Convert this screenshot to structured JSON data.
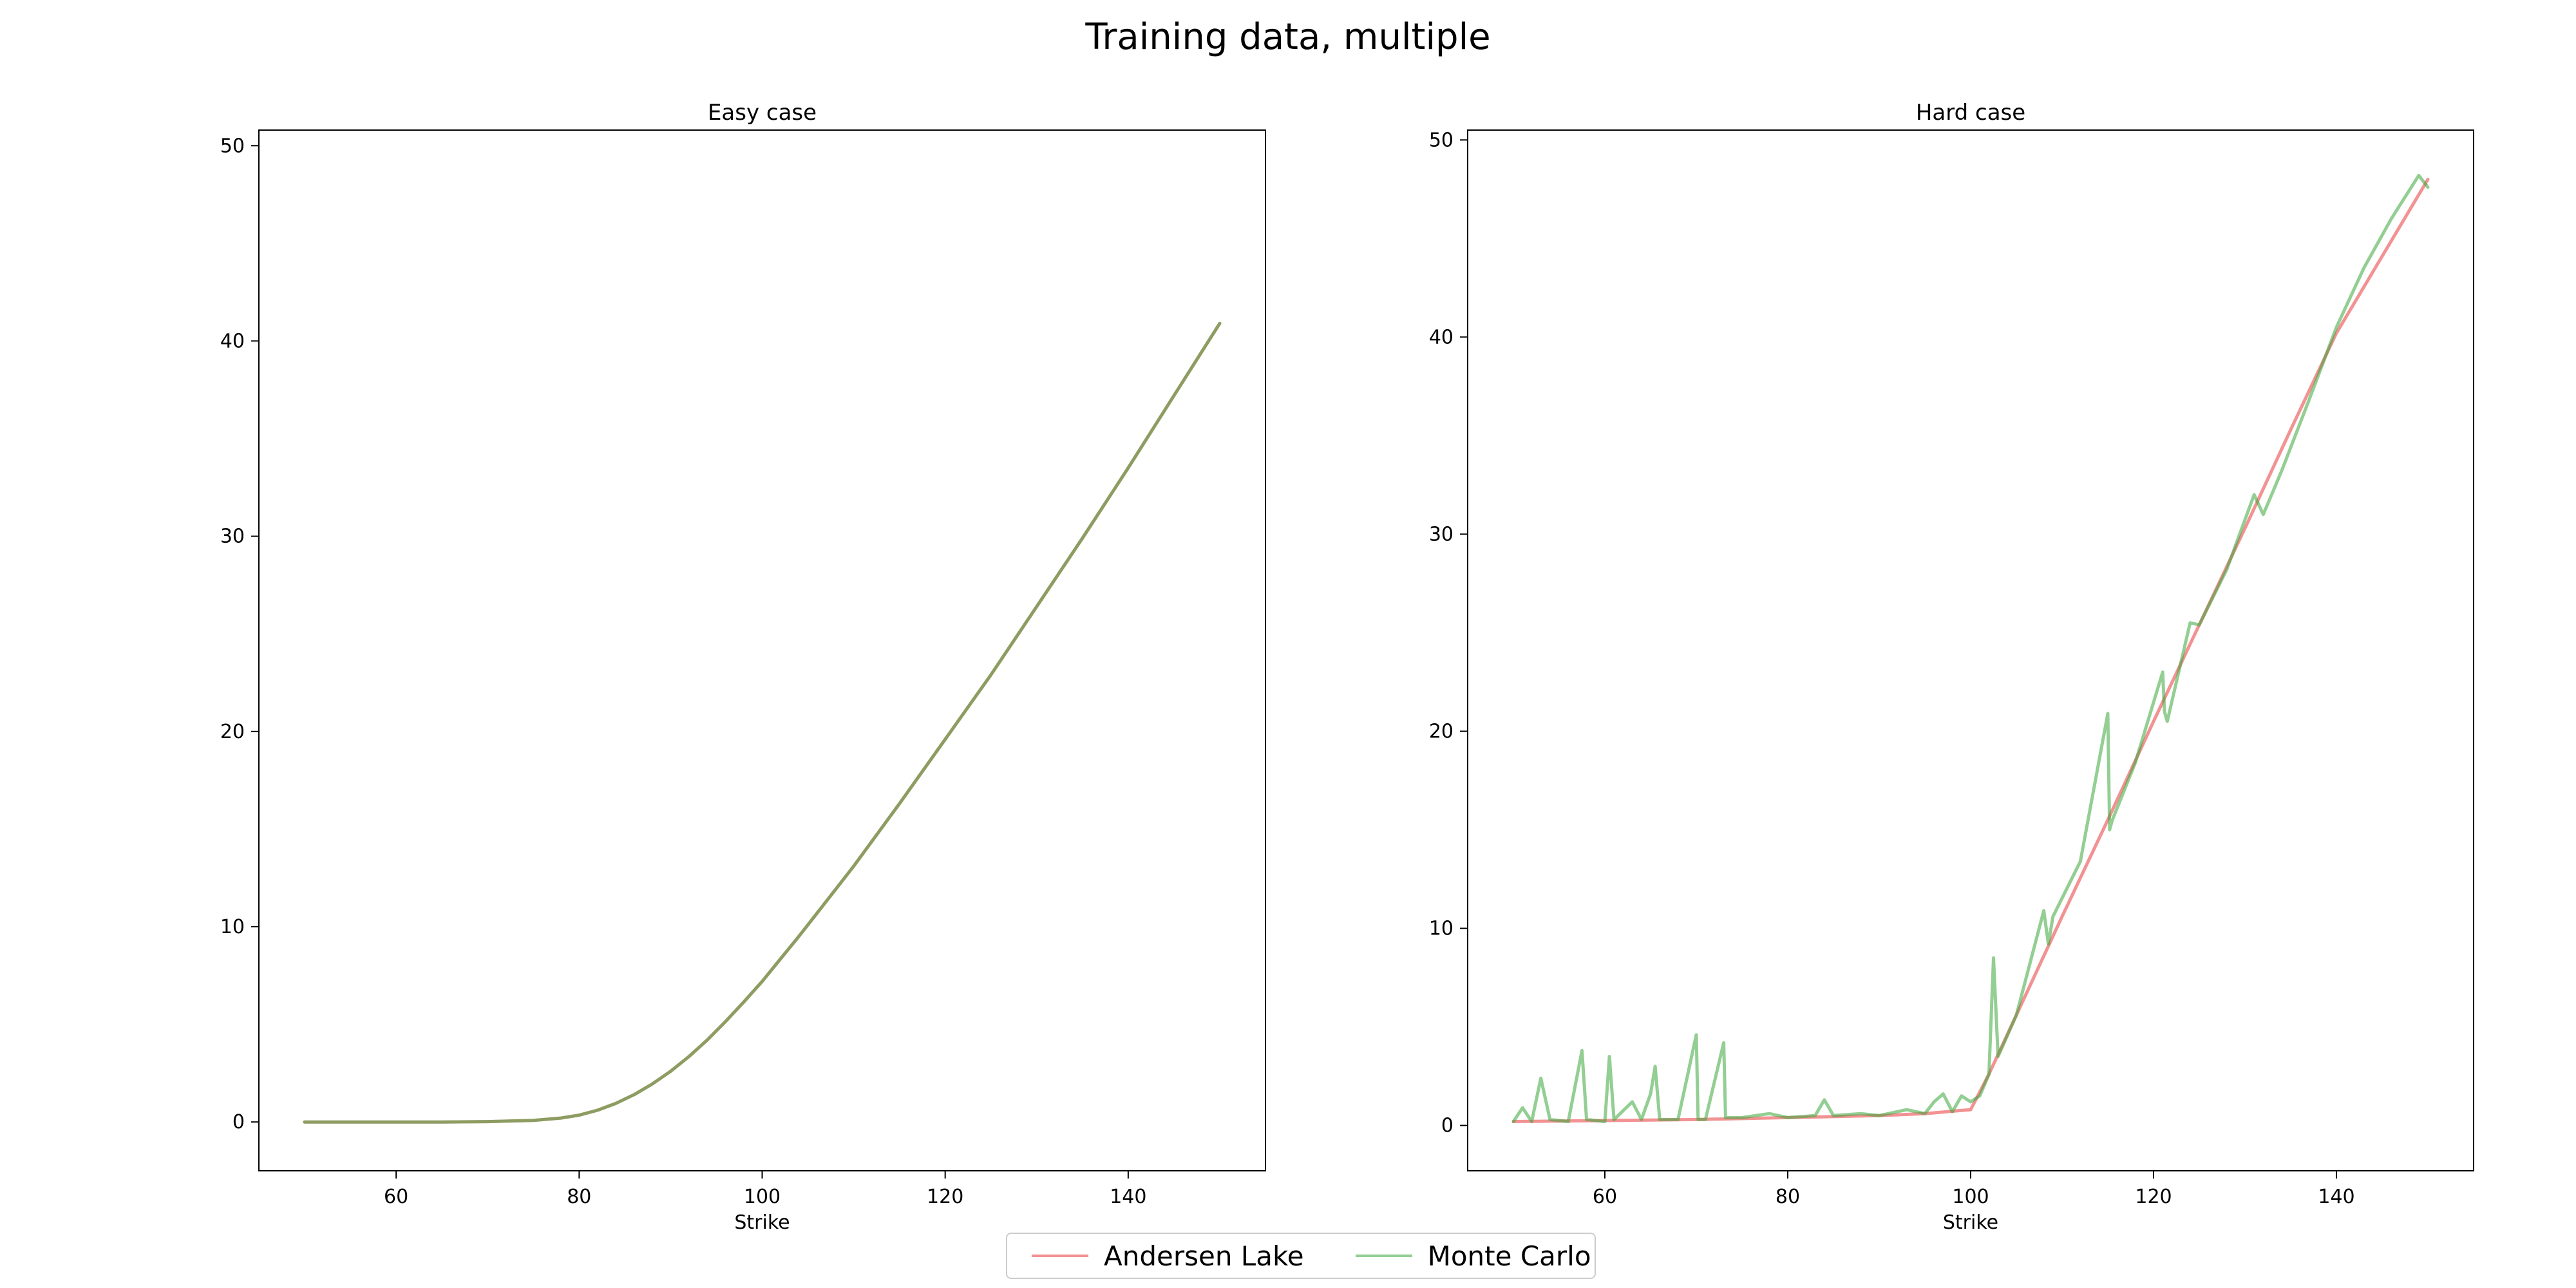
{
  "figure": {
    "suptitle": "Training data, multiple"
  },
  "legend": {
    "items": [
      {
        "label": "Andersen Lake",
        "color": "#e8383b"
      },
      {
        "label": "Monte Carlo",
        "color": "#3aa63a"
      }
    ],
    "placement": "bottom-center"
  },
  "chart_data": [
    {
      "type": "line",
      "title": "Easy case",
      "xlabel": "Strike",
      "ylabel": "",
      "xlim": [
        45,
        155
      ],
      "ylim": [
        -2.5,
        50.8
      ],
      "xticks": [
        60,
        80,
        100,
        120,
        140
      ],
      "yticks": [
        0,
        10,
        20,
        30,
        40,
        50
      ],
      "grid": false,
      "series": [
        {
          "name": "Andersen Lake",
          "color": "#e8383b",
          "x": [
            50,
            55,
            60,
            65,
            70,
            75,
            78,
            80,
            82,
            84,
            86,
            88,
            90,
            92,
            94,
            96,
            98,
            100,
            102,
            104,
            106,
            108,
            110,
            115,
            120,
            125,
            130,
            135,
            140,
            145,
            150
          ],
          "y": [
            0.0,
            0.0,
            0.0,
            0.0,
            0.02,
            0.08,
            0.2,
            0.35,
            0.6,
            0.95,
            1.4,
            1.95,
            2.6,
            3.35,
            4.2,
            5.15,
            6.15,
            7.2,
            8.35,
            9.5,
            10.7,
            11.9,
            13.1,
            16.3,
            19.6,
            22.9,
            26.4,
            29.9,
            33.5,
            37.2,
            40.9
          ]
        },
        {
          "name": "Monte Carlo",
          "color": "#3aa63a",
          "x": [
            50,
            55,
            60,
            65,
            70,
            75,
            78,
            80,
            82,
            84,
            86,
            88,
            90,
            92,
            94,
            96,
            98,
            100,
            102,
            104,
            106,
            108,
            110,
            115,
            120,
            125,
            130,
            135,
            140,
            145,
            150
          ],
          "y": [
            0.0,
            0.0,
            0.0,
            0.0,
            0.02,
            0.08,
            0.2,
            0.35,
            0.6,
            0.95,
            1.4,
            1.95,
            2.6,
            3.35,
            4.2,
            5.15,
            6.15,
            7.2,
            8.35,
            9.5,
            10.7,
            11.9,
            13.1,
            16.3,
            19.6,
            22.9,
            26.4,
            29.9,
            33.5,
            37.2,
            40.9
          ]
        }
      ]
    },
    {
      "type": "line",
      "title": "Hard case",
      "xlabel": "Strike",
      "ylabel": "",
      "xlim": [
        45,
        155
      ],
      "ylim": [
        -2.3,
        50.5
      ],
      "xticks": [
        60,
        80,
        100,
        120,
        140
      ],
      "yticks": [
        0,
        10,
        20,
        30,
        40,
        50
      ],
      "grid": false,
      "series": [
        {
          "name": "Andersen Lake",
          "color": "#e8383b",
          "x": [
            50,
            60,
            70,
            80,
            90,
            95,
            100,
            102,
            105,
            110,
            115,
            120,
            125,
            130,
            135,
            140,
            145,
            150
          ],
          "y": [
            0.2,
            0.25,
            0.3,
            0.4,
            0.5,
            0.6,
            0.8,
            2.6,
            5.6,
            10.6,
            15.5,
            20.5,
            25.4,
            30.3,
            35.3,
            40.2,
            44.1,
            48.0
          ]
        },
        {
          "name": "Monte Carlo",
          "color": "#3aa63a",
          "x": [
            50,
            51,
            52,
            53,
            54,
            56,
            57.5,
            58,
            60,
            60.5,
            61,
            63,
            64,
            65,
            65.5,
            66,
            68,
            70,
            70.2,
            71,
            73,
            73.2,
            75,
            78,
            80,
            83,
            84,
            85,
            88,
            90,
            93,
            95,
            96,
            97,
            98,
            99,
            100,
            101,
            102,
            102.5,
            103,
            105,
            108,
            108.5,
            109,
            112,
            115,
            115.2,
            115.5,
            118,
            121,
            121.2,
            121.5,
            124,
            125,
            128,
            131,
            132,
            134,
            137,
            140,
            143,
            146,
            149,
            150
          ],
          "y": [
            0.2,
            0.9,
            0.2,
            2.4,
            0.3,
            0.2,
            3.8,
            0.3,
            0.2,
            3.5,
            0.3,
            1.2,
            0.3,
            1.6,
            3.0,
            0.3,
            0.3,
            4.6,
            0.3,
            0.3,
            4.2,
            0.4,
            0.4,
            0.6,
            0.4,
            0.5,
            1.3,
            0.5,
            0.6,
            0.5,
            0.8,
            0.6,
            1.2,
            1.6,
            0.7,
            1.5,
            1.2,
            1.5,
            2.6,
            8.5,
            3.5,
            5.6,
            10.9,
            9.2,
            10.6,
            13.4,
            20.9,
            15.0,
            15.5,
            18.4,
            23.0,
            21.0,
            20.5,
            25.5,
            25.4,
            28.2,
            32.0,
            31.0,
            33.2,
            36.8,
            40.5,
            43.5,
            46.0,
            48.2,
            47.6
          ]
        }
      ]
    }
  ]
}
